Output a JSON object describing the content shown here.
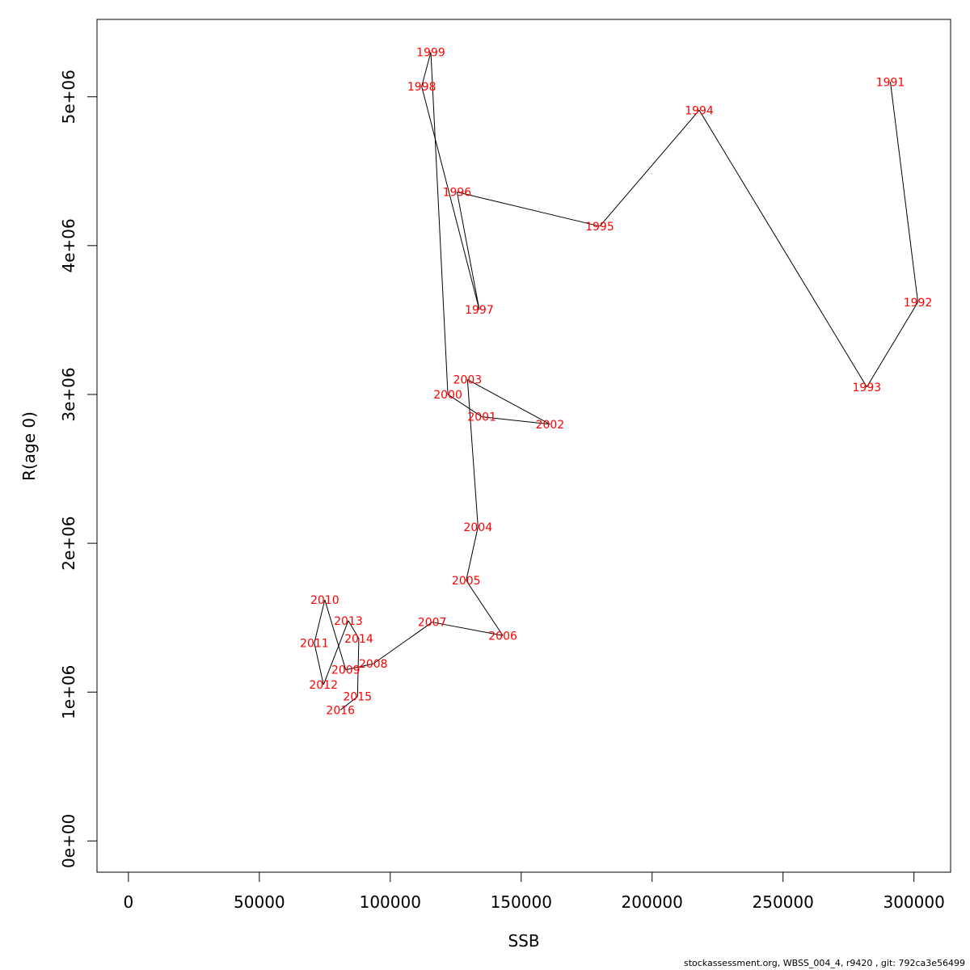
{
  "chart_data": {
    "type": "line",
    "title": "",
    "xlabel": "SSB",
    "ylabel": "R(age 0)",
    "xlim": [
      -12000,
      314000
    ],
    "ylim": [
      -210000,
      5520000
    ],
    "x_ticks": [
      {
        "value": 0,
        "label": "0"
      },
      {
        "value": 50000,
        "label": "50000"
      },
      {
        "value": 100000,
        "label": "100000"
      },
      {
        "value": 150000,
        "label": "150000"
      },
      {
        "value": 200000,
        "label": "200000"
      },
      {
        "value": 250000,
        "label": "250000"
      },
      {
        "value": 300000,
        "label": "300000"
      }
    ],
    "y_ticks": [
      {
        "value": 0,
        "label": "0e+00"
      },
      {
        "value": 1000000,
        "label": "1e+06"
      },
      {
        "value": 2000000,
        "label": "2e+06"
      },
      {
        "value": 3000000,
        "label": "3e+06"
      },
      {
        "value": 4000000,
        "label": "4e+06"
      },
      {
        "value": 5000000,
        "label": "5e+06"
      }
    ],
    "grid": false,
    "line_color": "#000000",
    "label_color": "#ff0000",
    "points": [
      {
        "label": "1991",
        "x": 291000,
        "y": 5100000
      },
      {
        "label": "1992",
        "x": 301500,
        "y": 3620000
      },
      {
        "label": "1993",
        "x": 282000,
        "y": 3050000
      },
      {
        "label": "1994",
        "x": 218000,
        "y": 4910000
      },
      {
        "label": "1995",
        "x": 180000,
        "y": 4130000
      },
      {
        "label": "1996",
        "x": 125500,
        "y": 4360000
      },
      {
        "label": "1997",
        "x": 134000,
        "y": 3570000
      },
      {
        "label": "1998",
        "x": 112000,
        "y": 5070000
      },
      {
        "label": "1999",
        "x": 115500,
        "y": 5300000
      },
      {
        "label": "2000",
        "x": 122000,
        "y": 3000000
      },
      {
        "label": "2001",
        "x": 135000,
        "y": 2850000
      },
      {
        "label": "2002",
        "x": 161000,
        "y": 2800000
      },
      {
        "label": "2003",
        "x": 129500,
        "y": 3100000
      },
      {
        "label": "2004",
        "x": 133500,
        "y": 2110000
      },
      {
        "label": "2005",
        "x": 129000,
        "y": 1750000
      },
      {
        "label": "2006",
        "x": 143000,
        "y": 1380000
      },
      {
        "label": "2007",
        "x": 116000,
        "y": 1470000
      },
      {
        "label": "2008",
        "x": 93500,
        "y": 1190000
      },
      {
        "label": "2009",
        "x": 83000,
        "y": 1150000
      },
      {
        "label": "2010",
        "x": 75000,
        "y": 1620000
      },
      {
        "label": "2011",
        "x": 71000,
        "y": 1330000
      },
      {
        "label": "2012",
        "x": 74500,
        "y": 1050000
      },
      {
        "label": "2013",
        "x": 84000,
        "y": 1480000
      },
      {
        "label": "2014",
        "x": 88000,
        "y": 1360000
      },
      {
        "label": "2015",
        "x": 87500,
        "y": 970000
      },
      {
        "label": "2016",
        "x": 81000,
        "y": 880000
      }
    ]
  },
  "footer": {
    "note": "stockassessment.org, WBSS_004_4, r9420 , git: 792ca3e56499"
  }
}
